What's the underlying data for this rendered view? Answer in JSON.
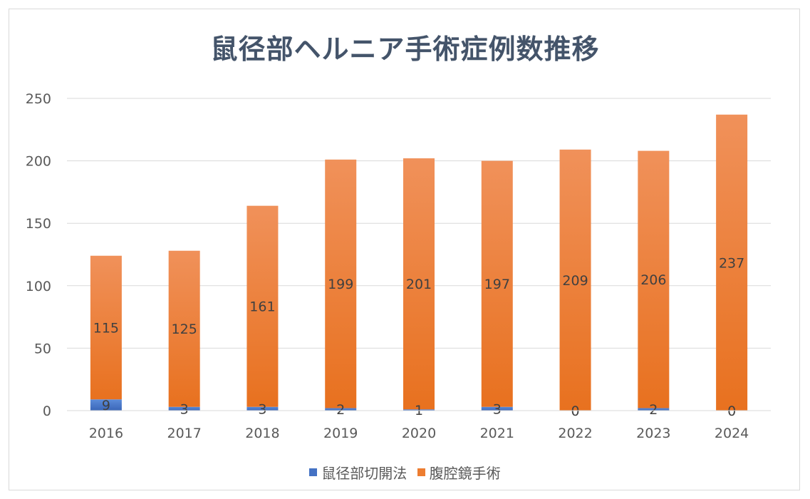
{
  "chart_data": {
    "type": "bar",
    "stacked": true,
    "title": "鼠径部ヘルニア手術症例数推移",
    "categories": [
      "2016",
      "2017",
      "2018",
      "2019",
      "2020",
      "2021",
      "2022",
      "2023",
      "2024"
    ],
    "series": [
      {
        "name": "鼠径部切開法",
        "values": [
          9,
          3,
          3,
          2,
          1,
          3,
          0,
          2,
          0
        ],
        "color": "#4472c4"
      },
      {
        "name": "腹腔鏡手術",
        "values": [
          115,
          125,
          161,
          199,
          201,
          197,
          209,
          206,
          237
        ],
        "color": "#ed7d31"
      }
    ],
    "ylim": [
      0,
      250
    ],
    "yticks": [
      0,
      50,
      100,
      150,
      200,
      250
    ],
    "grid": true,
    "legend_position": "bottom",
    "xlabel": "",
    "ylabel": ""
  }
}
